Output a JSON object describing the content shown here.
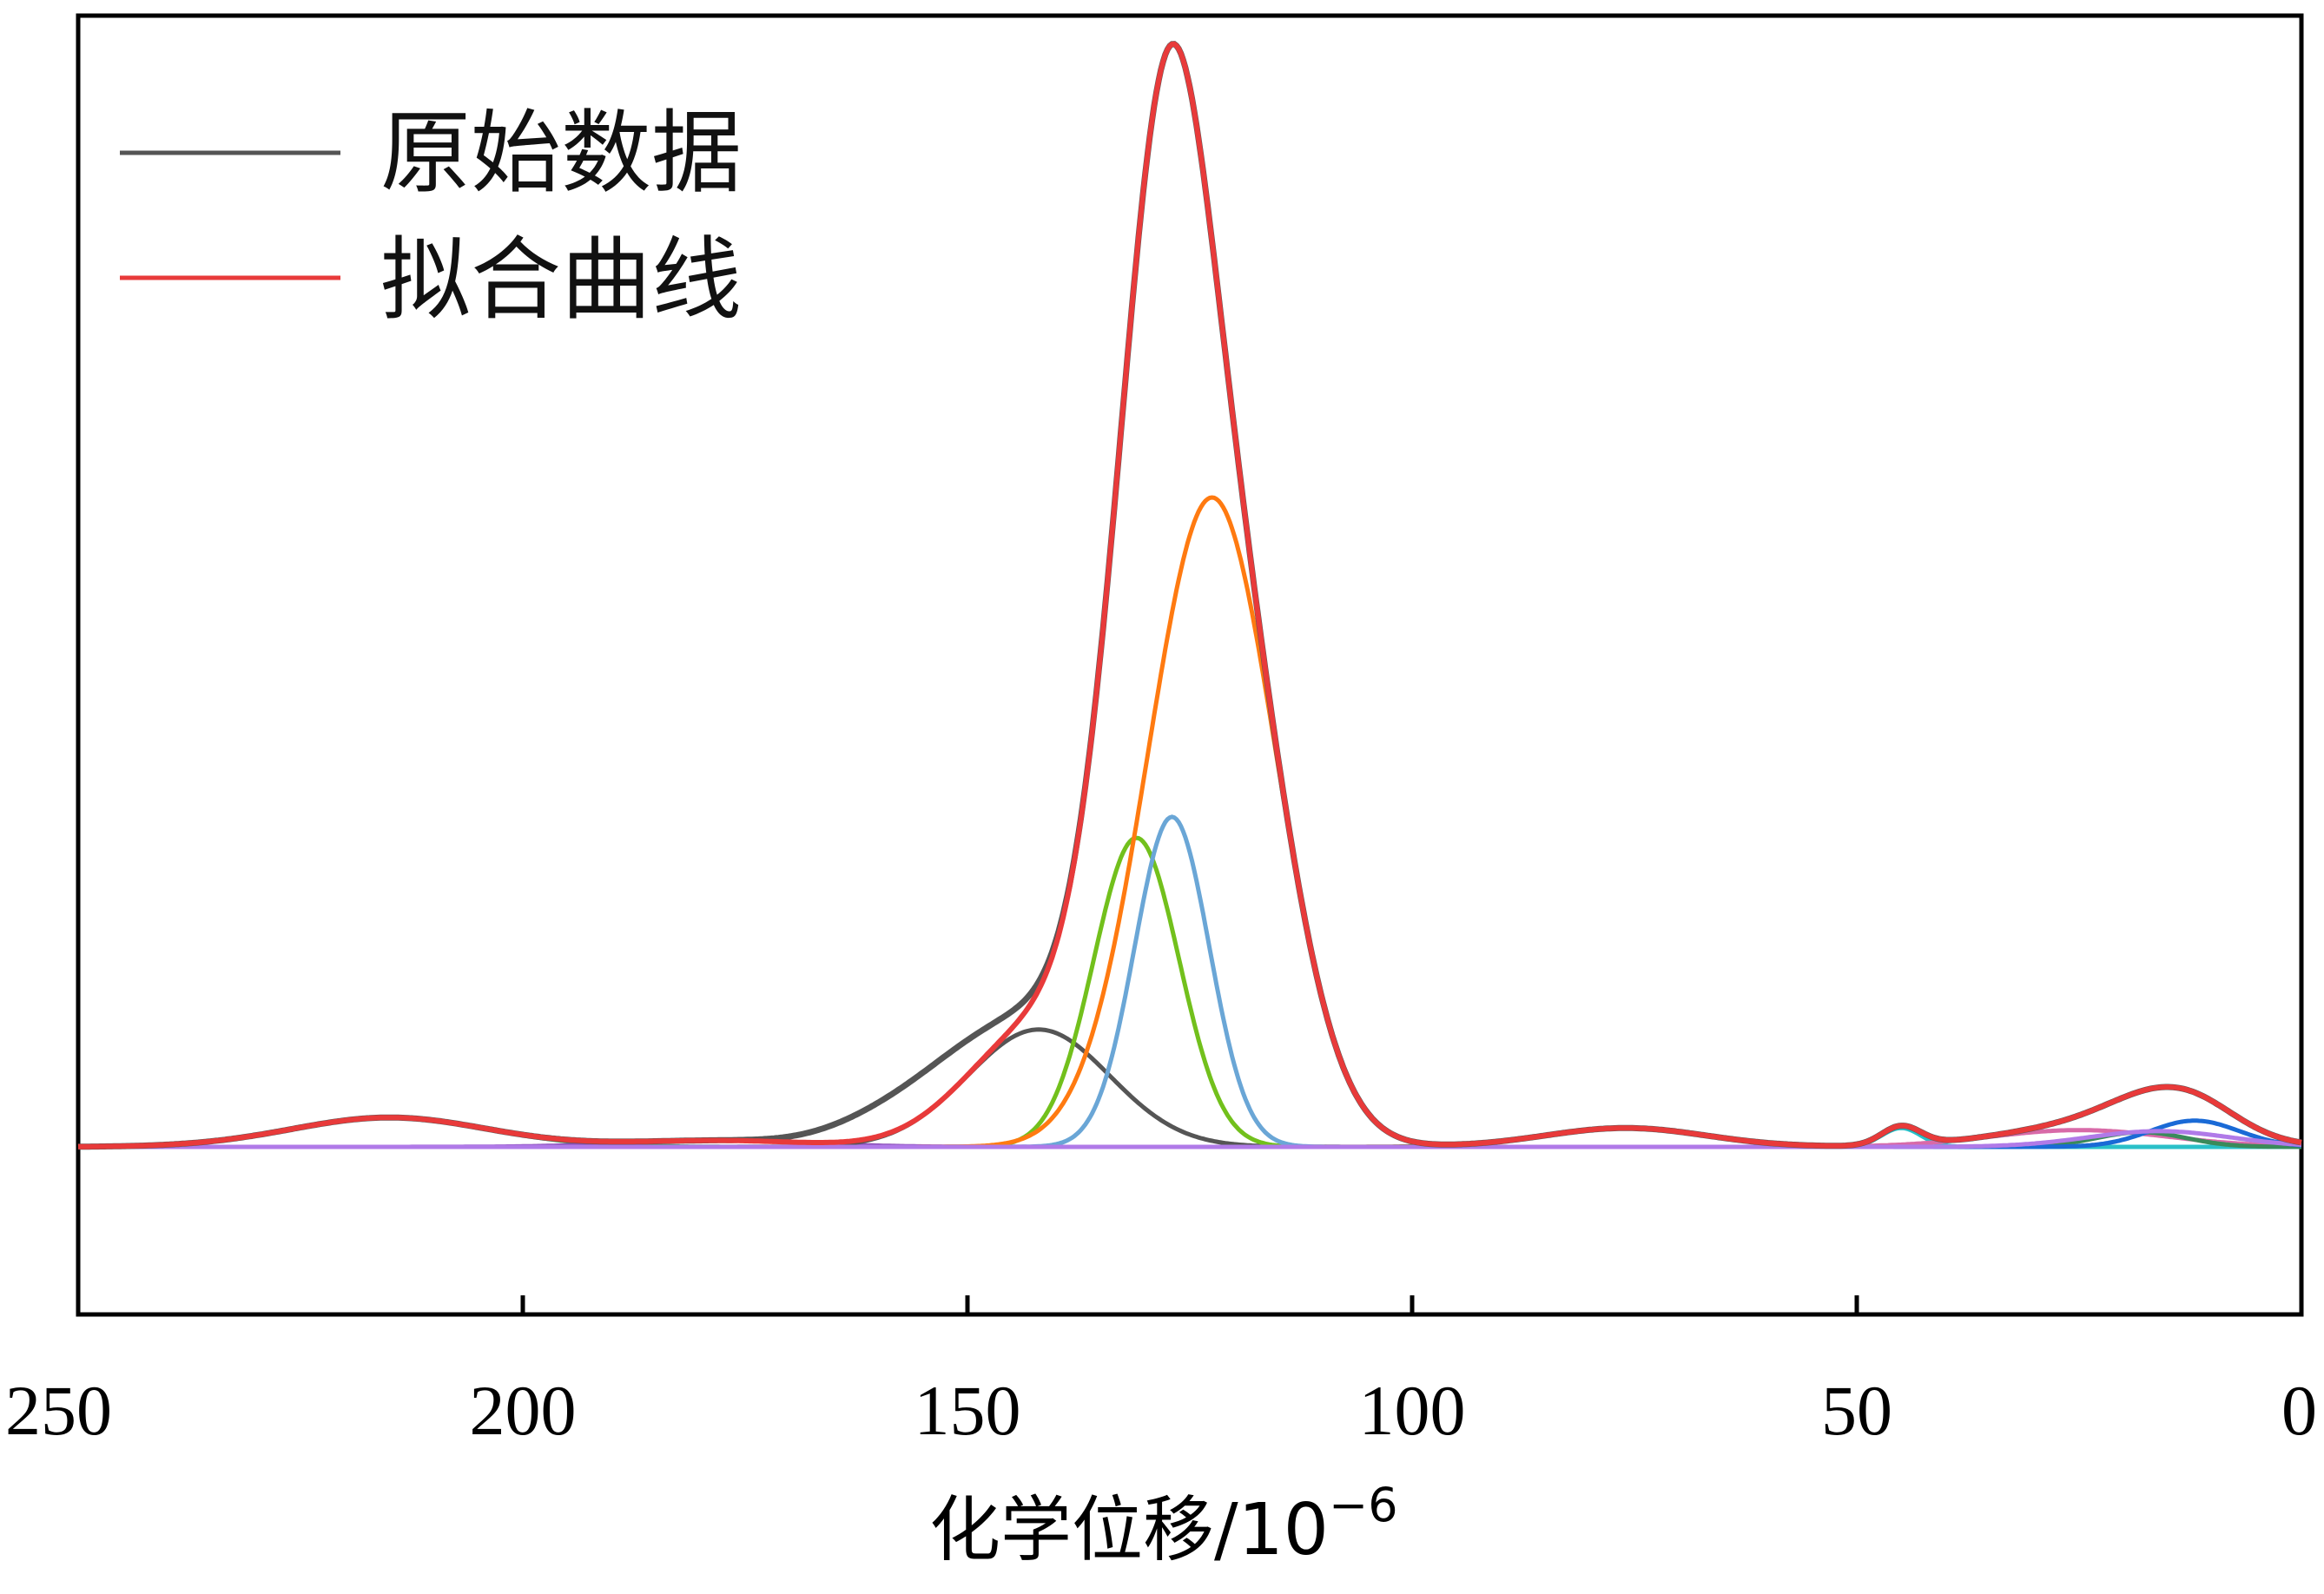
{
  "chart_data": {
    "type": "line",
    "xlabel": "化学位移/10",
    "xlabel_sup": "−6",
    "ylabel": "",
    "xlim": [
      250,
      0
    ],
    "x_reversed": true,
    "ylim": [
      -0.16,
      1.08
    ],
    "x_ticks": [
      250,
      200,
      150,
      100,
      50,
      0
    ],
    "x_tick_labels": [
      "250",
      "200",
      "150",
      "100",
      "50",
      "0"
    ],
    "grid": false,
    "legend": {
      "position": "top-left",
      "entries": [
        {
          "name": "原始数据",
          "color": "#555555"
        },
        {
          "name": "拟合曲线",
          "color": "#e83a3a"
        }
      ]
    },
    "fitted_components": [
      {
        "center": 215,
        "amplitude": 0.028,
        "sigma": 11,
        "color": "#3aa35a"
      },
      {
        "center": 178,
        "amplitude": 0.006,
        "sigma": 10,
        "color": "#8b4fb8"
      },
      {
        "center": 142,
        "amplitude": 0.112,
        "sigma": 8,
        "color": "#555555"
      },
      {
        "center": 131,
        "amplitude": 0.295,
        "sigma": 4.8,
        "color": "#72c01c"
      },
      {
        "center": 127,
        "amplitude": 0.315,
        "sigma": 4.2,
        "color": "#6aa6d6"
      },
      {
        "center": 122.5,
        "amplitude": 0.62,
        "sigma": 7.2,
        "color": "#ff7a10"
      },
      {
        "center": 76,
        "amplitude": 0.018,
        "sigma": 9,
        "color": "#8a7a1a"
      },
      {
        "center": 45,
        "amplitude": 0.018,
        "sigma": 2.2,
        "color": "#2ac0c8"
      },
      {
        "center": 25,
        "amplitude": 0.016,
        "sigma": 10,
        "color": "#d86aa8"
      },
      {
        "center": 18,
        "amplitude": 0.014,
        "sigma": 5,
        "color": "#3a8a5a"
      },
      {
        "center": 12,
        "amplitude": 0.025,
        "sigma": 5,
        "color": "#1a6ad6"
      },
      {
        "center": 16,
        "amplitude": 0.015,
        "sigma": 8,
        "color": "#b07ae8"
      }
    ],
    "raw_data_extra": [
      {
        "center": 160,
        "amplitude": 0.02,
        "sigma": 6
      },
      {
        "center": 152,
        "amplitude": 0.03,
        "sigma": 6
      }
    ],
    "fit_color": "#e83a3a",
    "raw_color": "#555555"
  }
}
